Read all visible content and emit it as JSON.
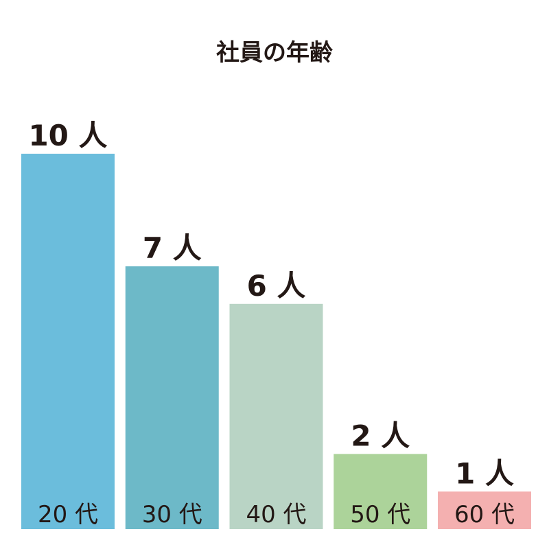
{
  "chart_data": {
    "type": "bar",
    "title": "社員の年齢",
    "categories": [
      "20 代",
      "30 代",
      "40 代",
      "50 代",
      "60 代"
    ],
    "values": [
      10,
      7,
      6,
      2,
      1
    ],
    "value_labels": [
      "10 人",
      "7 人",
      "6 人",
      "2 人",
      "1 人"
    ],
    "colors": [
      "#6bbddc",
      "#6db9c8",
      "#b9d4c5",
      "#acd39a",
      "#f4b0b0"
    ],
    "xlabel": "",
    "ylabel": "",
    "ylim": [
      0,
      10
    ],
    "grid": false,
    "legend": "none"
  }
}
